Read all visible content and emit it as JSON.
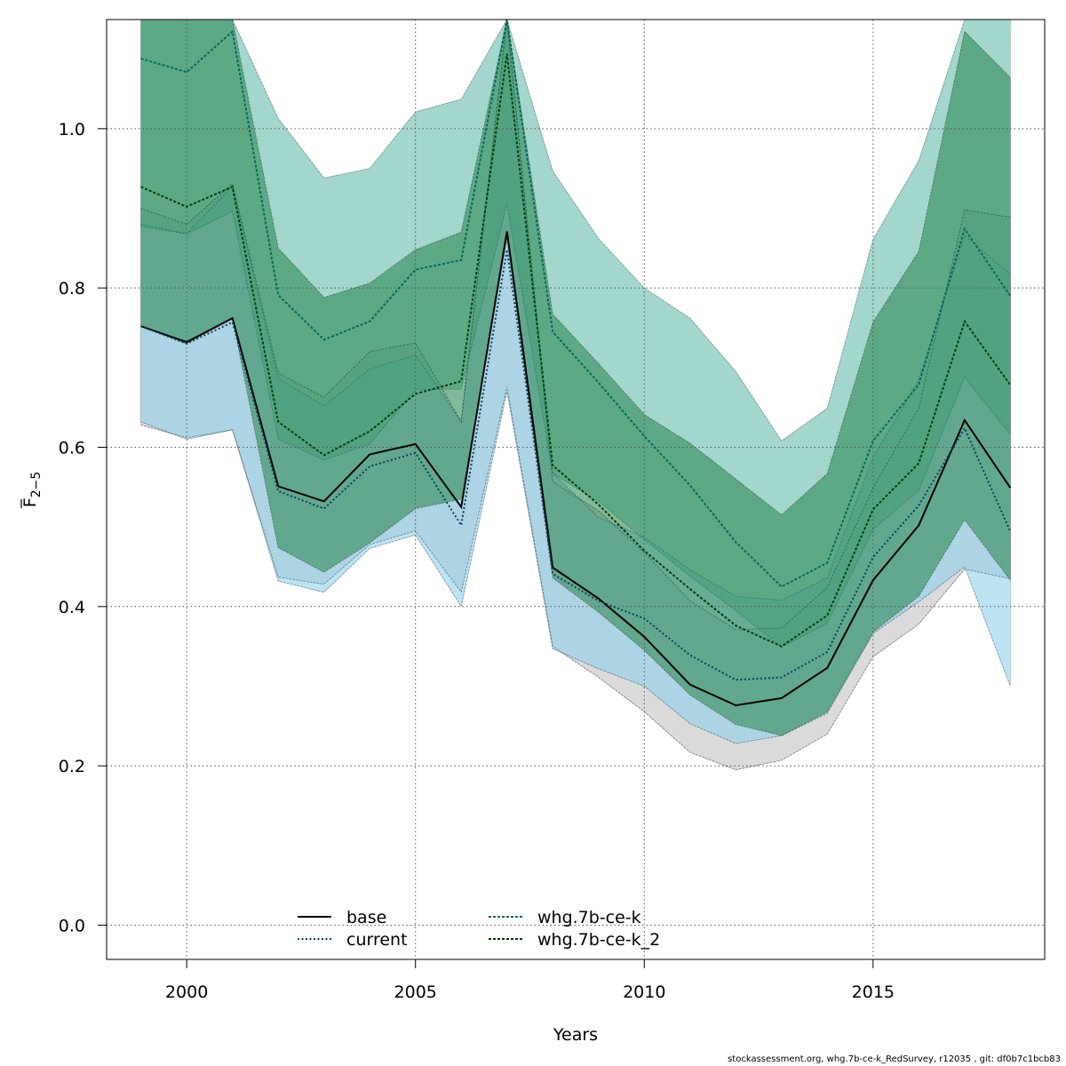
{
  "chart_data": {
    "type": "line",
    "xlabel": "Years",
    "ylabel_main": "F",
    "ylabel_sub": "2−5",
    "xlim": [
      1998.25,
      2018.75
    ],
    "ylim": [
      -0.043,
      1.137
    ],
    "x_ticks": [
      2000,
      2005,
      2010,
      2015
    ],
    "x_tick_labels": [
      "2000",
      "2005",
      "2010",
      "2015"
    ],
    "y_ticks": [
      0.0,
      0.2,
      0.4,
      0.6,
      0.8,
      1.0
    ],
    "y_tick_labels": [
      "0.0",
      "0.2",
      "0.4",
      "0.6",
      "0.8",
      "1.0"
    ],
    "grid": true,
    "legend_position": "bottom-center",
    "x": [
      1999,
      2000,
      2001,
      2002,
      2003,
      2004,
      2005,
      2006,
      2007,
      2008,
      2009,
      2010,
      2011,
      2012,
      2013,
      2014,
      2015,
      2016,
      2017,
      2018
    ],
    "series": [
      {
        "name": "base",
        "line_style": "solid",
        "line_color": "#000000",
        "band_color": "#bdbdbd",
        "values": [
          0.752,
          0.732,
          0.762,
          0.551,
          0.532,
          0.591,
          0.604,
          0.525,
          0.871,
          0.449,
          0.41,
          0.362,
          0.302,
          0.276,
          0.285,
          0.323,
          0.433,
          0.502,
          0.634,
          0.549
        ],
        "lower": [
          0.628,
          0.612,
          0.622,
          0.437,
          0.428,
          0.478,
          0.495,
          0.418,
          0.676,
          0.35,
          0.311,
          0.268,
          0.217,
          0.195,
          0.207,
          0.24,
          0.337,
          0.378,
          0.447,
          0.435
        ],
        "upper": [
          0.9,
          0.88,
          0.931,
          0.693,
          0.663,
          0.72,
          0.731,
          0.632,
          1.137,
          0.557,
          0.52,
          0.468,
          0.407,
          0.371,
          0.373,
          0.424,
          0.549,
          0.649,
          0.898,
          0.889
        ]
      },
      {
        "name": "current",
        "line_style": "dotted",
        "line_color": "#0a3d62",
        "band_color": "#87ceeb",
        "values": [
          0.752,
          0.73,
          0.757,
          0.545,
          0.523,
          0.576,
          0.593,
          0.502,
          0.848,
          0.441,
          0.407,
          0.385,
          0.339,
          0.308,
          0.311,
          0.343,
          0.462,
          0.527,
          0.624,
          0.494
        ],
        "lower": [
          0.632,
          0.61,
          0.622,
          0.432,
          0.418,
          0.473,
          0.49,
          0.4,
          0.67,
          0.347,
          0.322,
          0.3,
          0.253,
          0.228,
          0.238,
          0.266,
          0.366,
          0.406,
          0.45,
          0.3
        ],
        "upper": [
          0.88,
          0.868,
          0.928,
          0.686,
          0.652,
          0.698,
          0.716,
          0.632,
          1.137,
          0.567,
          0.512,
          0.487,
          0.446,
          0.413,
          0.408,
          0.436,
          0.587,
          0.685,
          0.866,
          0.817
        ]
      },
      {
        "name": "whg.7b-ce-k",
        "line_style": "dashed",
        "line_color": "#00695c",
        "band_color": "#66bbaa",
        "values": [
          1.088,
          1.071,
          1.122,
          0.791,
          0.735,
          0.758,
          0.823,
          0.835,
          1.137,
          0.745,
          0.681,
          0.614,
          0.552,
          0.481,
          0.425,
          0.455,
          0.608,
          0.679,
          0.874,
          0.79
        ],
        "lower": [
          0.877,
          0.868,
          0.896,
          0.61,
          0.584,
          0.604,
          0.672,
          0.673,
          0.906,
          0.567,
          0.532,
          0.484,
          0.438,
          0.395,
          0.349,
          0.379,
          0.497,
          0.546,
          0.688,
          0.616
        ],
        "upper": [
          1.137,
          1.137,
          1.137,
          1.013,
          0.938,
          0.95,
          1.021,
          1.037,
          1.137,
          0.947,
          0.862,
          0.8,
          0.762,
          0.695,
          0.608,
          0.649,
          0.861,
          0.96,
          1.137,
          1.137
        ]
      },
      {
        "name": "whg.7b-ce-k_2",
        "line_style": "dashed",
        "line_color": "#003d00",
        "band_color": "#2e8b57",
        "values": [
          0.927,
          0.902,
          0.927,
          0.632,
          0.59,
          0.62,
          0.667,
          0.683,
          1.094,
          0.577,
          0.528,
          0.47,
          0.422,
          0.376,
          0.35,
          0.389,
          0.522,
          0.58,
          0.758,
          0.678
        ],
        "lower": [
          0.752,
          0.73,
          0.762,
          0.474,
          0.443,
          0.48,
          0.523,
          0.535,
          0.862,
          0.436,
          0.393,
          0.345,
          0.289,
          0.252,
          0.238,
          0.268,
          0.368,
          0.413,
          0.509,
          0.433
        ],
        "upper": [
          1.137,
          1.137,
          1.137,
          0.85,
          0.788,
          0.806,
          0.848,
          0.87,
          1.137,
          0.767,
          0.705,
          0.641,
          0.605,
          0.56,
          0.515,
          0.567,
          0.757,
          0.846,
          1.122,
          1.064
        ]
      }
    ]
  },
  "footer": "stockassessment.org, whg.7b-ce-k_RedSurvey, r12035 , git: df0b7c1bcb83"
}
